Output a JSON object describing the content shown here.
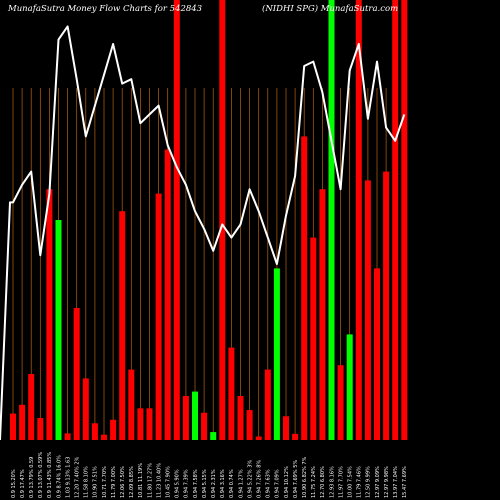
{
  "chart_data": {
    "type": "bar",
    "title_left": "MunafaSutra  Money Flow  Charts for 542843",
    "title_right": "(NIDHI              SPG) MunafaSutra.com",
    "ylim": [
      0,
      100
    ],
    "colors": {
      "background": "#000000",
      "grid": "#b8640f",
      "up": "#00ff00",
      "down": "#ff0000",
      "line": "#ffffff",
      "text": "#ffffff"
    },
    "categories": [
      "0.9 15.20%",
      "0.9 17.47%",
      "0.9 13.79% 0.59",
      "0.9 13.07% 0.59%",
      "0.9 11.43% 0.85%",
      "0.9 8.74% 16.0%",
      "1.03 9.13% 1.63",
      "12.20 7.40% 2%",
      "11.58 8.10%",
      "10.90 7.51%",
      "10.71 7.70%",
      "11.79 7.00%",
      "12.06 7.50%",
      "12.09 8.85%",
      "10.81 11.19%",
      "11.80 17.27%",
      "11.23 10.40%",
      "10.45 7.90%",
      "0.94 5.90%",
      "0.94 7.39%",
      "0.94 7.58%",
      "0.94 5.15%",
      "0.94 2.31%",
      "0.94 3.16%",
      "0.94 0.74%",
      "0.94 1.27%",
      "0.94 5.22% 3%",
      "0.94 7.26% 8%",
      "0.94 7.63%",
      "0.94 7.09%",
      "0.94 10.12%",
      "0.94 7.69% 5%",
      "10.90 6.82% 7%",
      "11.75 7.24%",
      "12.70 6.80%",
      "12.93 8.16%",
      "11.97 7.70%",
      "10.00 7.54%",
      "11.79 7.46%",
      "12.50 9.99%",
      "12.97 9.09%",
      "12.97 9.98%",
      "13.97 7.04%",
      "15.47 7.69%"
    ],
    "values": [
      6,
      8,
      15,
      5,
      57,
      50,
      1.5,
      30,
      14,
      3.8,
      1.2,
      4.6,
      52,
      16,
      7.2,
      7.2,
      56,
      66,
      100,
      10,
      11,
      6.2,
      1.8,
      100,
      21,
      10,
      6.8,
      0.8,
      16,
      39,
      5.4,
      1.4,
      69,
      46,
      57,
      100,
      17,
      24,
      100,
      59,
      39,
      61,
      100,
      100
    ],
    "bar_colors": [
      "red",
      "red",
      "red",
      "red",
      "red",
      "green",
      "red",
      "red",
      "red",
      "red",
      "red",
      "red",
      "red",
      "red",
      "red",
      "red",
      "red",
      "red",
      "red",
      "red",
      "green",
      "red",
      "green",
      "red",
      "red",
      "red",
      "red",
      "red",
      "red",
      "green",
      "red",
      "red",
      "red",
      "red",
      "red",
      "green",
      "red",
      "green",
      "red",
      "red",
      "red",
      "red",
      "red",
      "red"
    ],
    "line": [
      54,
      58,
      61,
      42,
      56,
      91,
      94,
      82,
      69,
      76,
      83,
      90,
      81,
      82,
      72,
      74,
      76,
      67,
      62,
      58,
      52,
      48,
      43,
      49,
      46,
      49,
      57,
      52,
      46,
      40,
      51,
      60,
      85,
      86,
      79,
      68,
      57,
      84,
      90,
      73,
      86,
      71,
      68,
      74
    ]
  }
}
